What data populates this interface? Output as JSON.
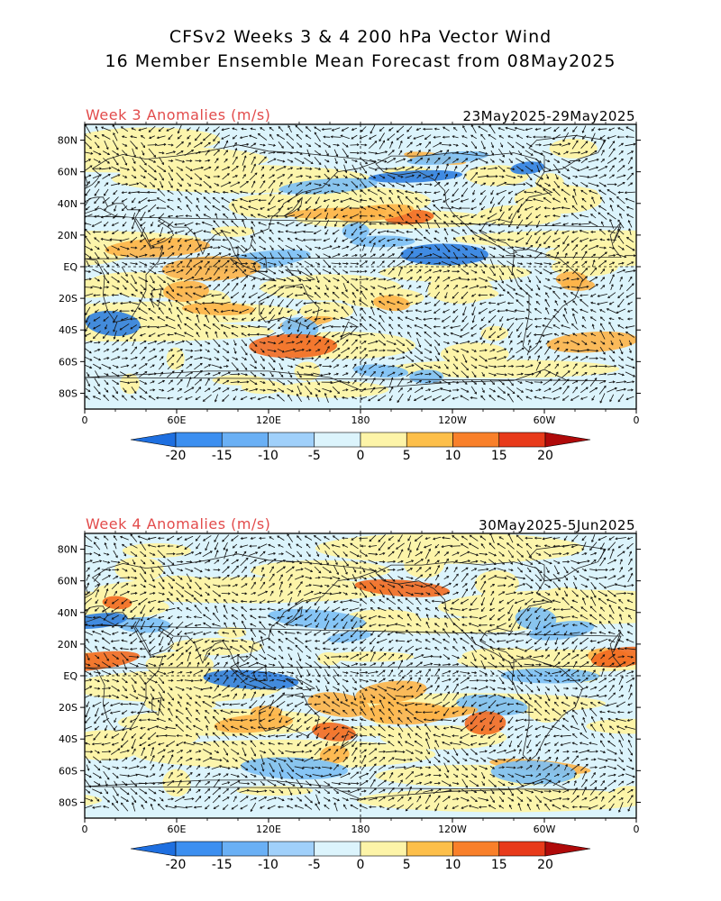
{
  "title": {
    "line1": "CFSv2 Weeks 3 & 4 200 hPa Vector Wind",
    "line2": "16 Member Ensemble Mean Forecast from 08May2025"
  },
  "panels": [
    {
      "label": "Week 3 Anomalies (m/s)",
      "date_range": "23May2025-29May2025",
      "seed": 7
    },
    {
      "label": "Week 4 Anomalies (m/s)",
      "date_range": "30May2025-5Jun2025",
      "seed": 19
    }
  ],
  "lat_labels": [
    "80N",
    "60N",
    "40N",
    "20N",
    "EQ",
    "20S",
    "40S",
    "60S",
    "80S"
  ],
  "lon_labels": [
    "0",
    "60E",
    "120E",
    "180",
    "120W",
    "60W",
    "0"
  ],
  "colorbar": {
    "labels": [
      "-20",
      "-15",
      "-10",
      "-5",
      "0",
      "5",
      "10",
      "15",
      "20"
    ],
    "colors": [
      "#1e6fe0",
      "#3c8ff0",
      "#6ab0f5",
      "#a0d0fa",
      "#dcf4fc",
      "#fdf4a8",
      "#fdbf4a",
      "#f9802a",
      "#e83a1a",
      "#b00a0a"
    ]
  },
  "anomaly_colors": {
    "strong_negative": "#2f7fe0",
    "negative": "#7cc0f5",
    "weak_negative": "#dcf4fc",
    "weak_positive": "#fdf4a8",
    "positive": "#fdb448",
    "strong_positive": "#f26a20"
  }
}
